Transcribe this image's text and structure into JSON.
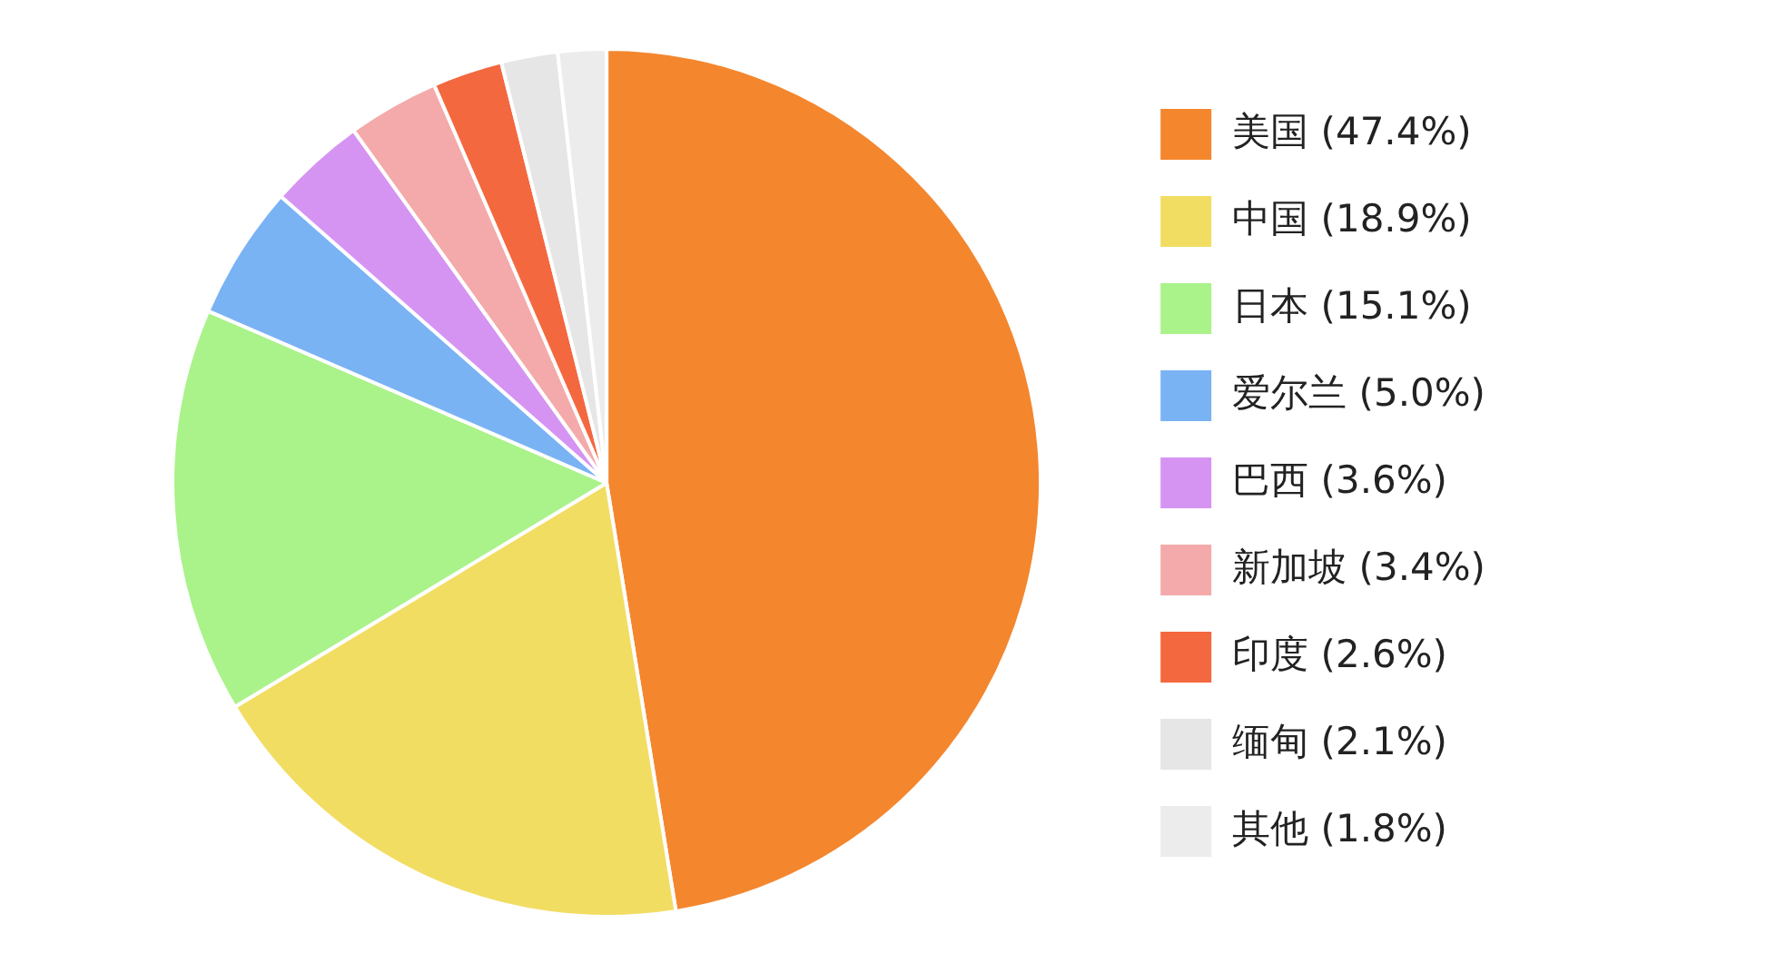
{
  "chart_data": {
    "type": "pie",
    "categories": [
      "美国",
      "中国",
      "日本",
      "爱尔兰",
      "巴西",
      "新加坡",
      "印度",
      "缅甸",
      "其他"
    ],
    "values": [
      47.4,
      18.9,
      15.1,
      5.0,
      3.6,
      3.4,
      2.6,
      2.1,
      1.8
    ],
    "value_labels": [
      "(47.4%)",
      "(18.9%)",
      "(15.1%)",
      "(5.0%)",
      "(3.6%)",
      "(3.4%)",
      "(2.6%)",
      "(2.1%)",
      "(1.8%)"
    ],
    "colors": [
      "#f4862e",
      "#f2dd63",
      "#aaf28a",
      "#7ab3f4",
      "#d594f2",
      "#f4aaaa",
      "#f4683f",
      "#e6e6e6",
      "#ececec"
    ],
    "legend": "right"
  }
}
